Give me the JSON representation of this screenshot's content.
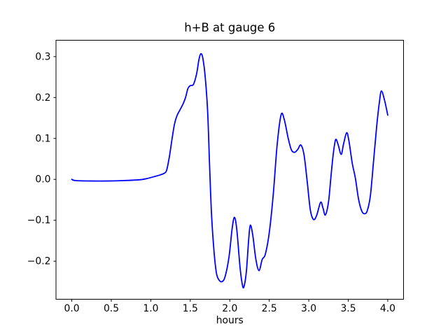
{
  "figure": {
    "background": "#ffffff",
    "frame_color": "#000000",
    "text_color": "#000000"
  },
  "chart_data": {
    "type": "line",
    "title": "h+B at gauge 6",
    "xlabel": "hours",
    "ylabel": "",
    "grid": false,
    "legend": null,
    "xlim": [
      -0.2,
      4.2
    ],
    "ylim": [
      -0.293,
      0.34
    ],
    "x_ticks": [
      {
        "value": 0.0,
        "label": "0.0"
      },
      {
        "value": 0.5,
        "label": "0.5"
      },
      {
        "value": 1.0,
        "label": "1.0"
      },
      {
        "value": 1.5,
        "label": "1.5"
      },
      {
        "value": 2.0,
        "label": "2.0"
      },
      {
        "value": 2.5,
        "label": "2.5"
      },
      {
        "value": 3.0,
        "label": "3.0"
      },
      {
        "value": 3.5,
        "label": "3.5"
      },
      {
        "value": 4.0,
        "label": "4.0"
      }
    ],
    "y_ticks": [
      {
        "value": -0.2,
        "label": "−0.2"
      },
      {
        "value": -0.1,
        "label": "−0.1"
      },
      {
        "value": 0.0,
        "label": "0.0"
      },
      {
        "value": 0.1,
        "label": "0.1"
      },
      {
        "value": 0.2,
        "label": "0.2"
      },
      {
        "value": 0.3,
        "label": "0.3"
      }
    ],
    "series": [
      {
        "color": "#0000ff",
        "line_width": 1.8,
        "points": [
          [
            0.0,
            0.0
          ],
          [
            0.05,
            -0.003
          ],
          [
            0.25,
            -0.004
          ],
          [
            0.45,
            -0.004
          ],
          [
            0.65,
            -0.003
          ],
          [
            0.86,
            -0.001
          ],
          [
            0.95,
            0.002
          ],
          [
            1.05,
            0.007
          ],
          [
            1.12,
            0.011
          ],
          [
            1.17,
            0.015
          ],
          [
            1.2,
            0.022
          ],
          [
            1.235,
            0.055
          ],
          [
            1.27,
            0.1
          ],
          [
            1.3,
            0.135
          ],
          [
            1.33,
            0.155
          ],
          [
            1.37,
            0.17
          ],
          [
            1.41,
            0.185
          ],
          [
            1.44,
            0.2
          ],
          [
            1.47,
            0.222
          ],
          [
            1.5,
            0.229
          ],
          [
            1.54,
            0.232
          ],
          [
            1.58,
            0.258
          ],
          [
            1.61,
            0.293
          ],
          [
            1.635,
            0.307
          ],
          [
            1.66,
            0.295
          ],
          [
            1.69,
            0.248
          ],
          [
            1.72,
            0.165
          ],
          [
            1.745,
            0.03
          ],
          [
            1.77,
            -0.09
          ],
          [
            1.8,
            -0.175
          ],
          [
            1.83,
            -0.228
          ],
          [
            1.86,
            -0.245
          ],
          [
            1.9,
            -0.25
          ],
          [
            1.94,
            -0.238
          ],
          [
            1.99,
            -0.19
          ],
          [
            2.03,
            -0.12
          ],
          [
            2.06,
            -0.093
          ],
          [
            2.09,
            -0.125
          ],
          [
            2.13,
            -0.215
          ],
          [
            2.16,
            -0.258
          ],
          [
            2.18,
            -0.262
          ],
          [
            2.21,
            -0.225
          ],
          [
            2.24,
            -0.145
          ],
          [
            2.26,
            -0.112
          ],
          [
            2.29,
            -0.135
          ],
          [
            2.33,
            -0.195
          ],
          [
            2.37,
            -0.223
          ],
          [
            2.41,
            -0.196
          ],
          [
            2.45,
            -0.183
          ],
          [
            2.5,
            -0.13
          ],
          [
            2.55,
            -0.038
          ],
          [
            2.6,
            0.085
          ],
          [
            2.65,
            0.158
          ],
          [
            2.69,
            0.146
          ],
          [
            2.74,
            0.1
          ],
          [
            2.78,
            0.072
          ],
          [
            2.82,
            0.066
          ],
          [
            2.86,
            0.073
          ],
          [
            2.9,
            0.084
          ],
          [
            2.94,
            0.06
          ],
          [
            2.98,
            -0.005
          ],
          [
            3.02,
            -0.075
          ],
          [
            3.06,
            -0.098
          ],
          [
            3.1,
            -0.088
          ],
          [
            3.15,
            -0.056
          ],
          [
            3.18,
            -0.07
          ],
          [
            3.21,
            -0.087
          ],
          [
            3.25,
            -0.055
          ],
          [
            3.28,
            0.005
          ],
          [
            3.31,
            0.062
          ],
          [
            3.34,
            0.097
          ],
          [
            3.37,
            0.086
          ],
          [
            3.41,
            0.061
          ],
          [
            3.44,
            0.086
          ],
          [
            3.48,
            0.114
          ],
          [
            3.51,
            0.092
          ],
          [
            3.55,
            0.04
          ],
          [
            3.59,
            0.003
          ],
          [
            3.63,
            -0.048
          ],
          [
            3.67,
            -0.077
          ],
          [
            3.705,
            -0.084
          ],
          [
            3.74,
            -0.077
          ],
          [
            3.78,
            -0.04
          ],
          [
            3.82,
            0.044
          ],
          [
            3.86,
            0.13
          ],
          [
            3.895,
            0.19
          ],
          [
            3.92,
            0.216
          ],
          [
            3.96,
            0.193
          ],
          [
            4.0,
            0.157
          ]
        ]
      }
    ]
  }
}
